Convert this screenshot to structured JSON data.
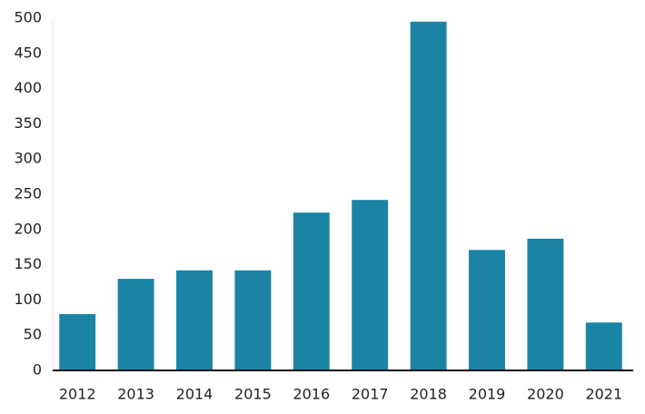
{
  "chart_data": {
    "type": "bar",
    "categories": [
      "2012",
      "2013",
      "2014",
      "2015",
      "2016",
      "2017",
      "2018",
      "2019",
      "2020",
      "2021"
    ],
    "values": [
      80,
      130,
      142,
      142,
      224,
      242,
      495,
      171,
      187,
      68
    ],
    "color": "#1b84a4",
    "ylim": [
      0,
      500
    ],
    "yticks": [
      0,
      50,
      100,
      150,
      200,
      250,
      300,
      350,
      400,
      450,
      500
    ],
    "grid": false
  }
}
